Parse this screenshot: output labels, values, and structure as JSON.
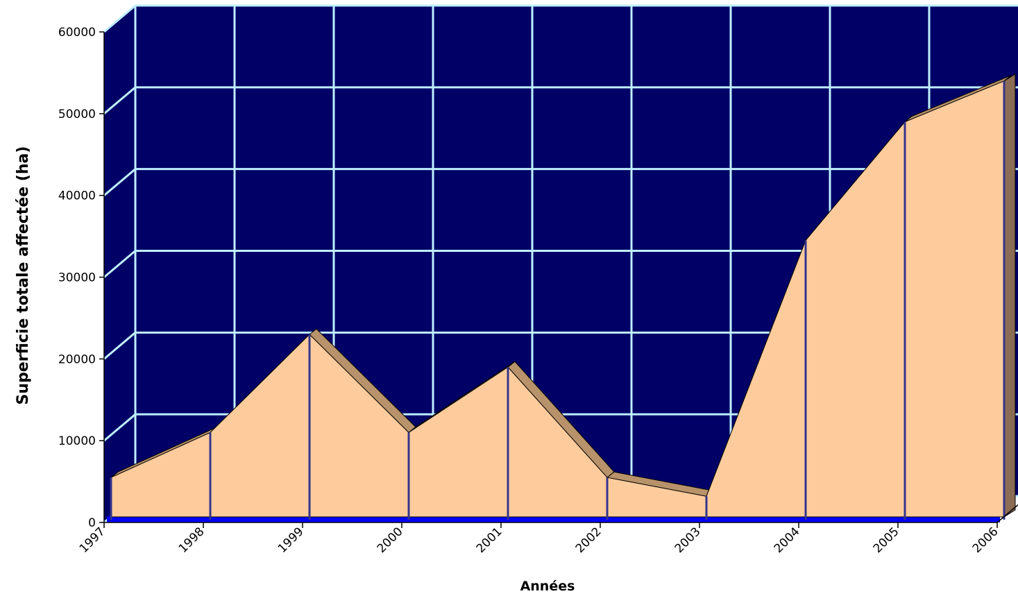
{
  "chart_data": {
    "type": "area",
    "title": "",
    "xlabel": "Années",
    "ylabel": "Superficie totale affectée (ha)",
    "x": [
      "1997",
      "1998",
      "1999",
      "2000",
      "2001",
      "2002",
      "2003",
      "2004",
      "2005",
      "2006"
    ],
    "series": [
      {
        "values": [
          5500,
          11000,
          23000,
          11000,
          19000,
          5500,
          3200,
          34500,
          49000,
          54000
        ]
      }
    ],
    "ylim": [
      0,
      60000
    ],
    "yticks": [
      "0",
      "10000",
      "20000",
      "30000",
      "40000",
      "50000",
      "60000"
    ],
    "grid": true,
    "three_d": true,
    "colors": {
      "plot_background": "#000066",
      "grid": "#bfefff",
      "area_face": "#fecb9c",
      "area_top": "#b8926a",
      "area_side": "#8b6c54",
      "floor": "#0000ff",
      "drop_lines": "#34348c"
    }
  }
}
